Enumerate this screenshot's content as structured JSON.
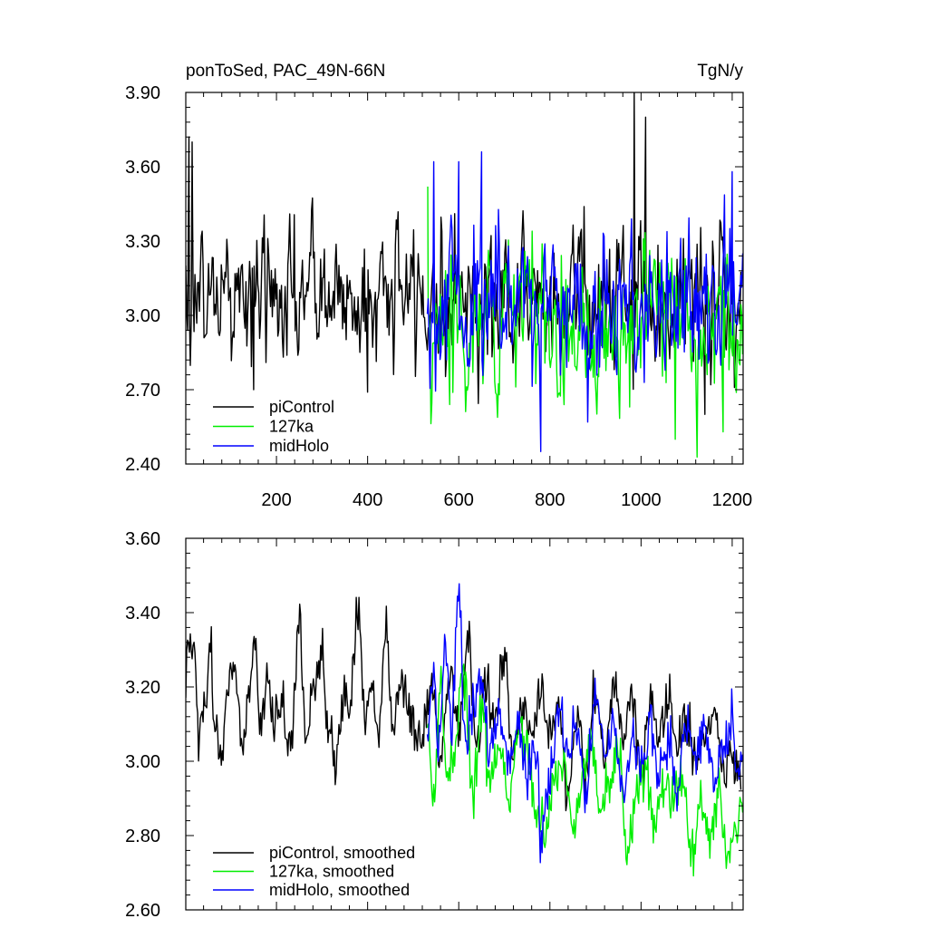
{
  "chart_data": [
    {
      "type": "line",
      "title_left": "ponToSed, PAC_49N-66N",
      "title_right": "TgN/y",
      "xlabel": "",
      "ylabel": "",
      "xlim": [
        1,
        1224
      ],
      "ylim": [
        2.4,
        3.9
      ],
      "xticks": [
        200,
        400,
        600,
        800,
        1000,
        1200
      ],
      "xtick_labels": [
        "200",
        "400",
        "600",
        "800",
        "1000",
        "1200"
      ],
      "yticks": [
        2.4,
        2.7,
        3.0,
        3.3,
        3.6,
        3.9
      ],
      "ytick_labels": [
        "2.40",
        "2.70",
        "3.00",
        "3.30",
        "3.60",
        "3.90"
      ],
      "grid": false,
      "legend_placement": "bottom-left",
      "series": [
        {
          "name": "piControl",
          "color": "#000000",
          "x_start": 1,
          "x_end": 1220,
          "mean": 3.08,
          "std": 0.15,
          "approximate": true,
          "notable_points": [
            [
              8,
              3.72
            ],
            [
              15,
              3.7
            ],
            [
              150,
              2.7
            ],
            [
              400,
              2.69
            ],
            [
              985,
              3.9
            ],
            [
              1010,
              3.8
            ],
            [
              1140,
              2.6
            ]
          ]
        },
        {
          "name": "127ka",
          "color": "#00ee00",
          "x_start": 531,
          "x_end": 1224,
          "mean": 2.98,
          "std": 0.17,
          "approximate": true,
          "notable_points": [
            [
              532,
              3.52
            ],
            [
              580,
              2.64
            ],
            [
              1075,
              2.5
            ],
            [
              1180,
              2.53
            ]
          ]
        },
        {
          "name": "midHolo",
          "color": "#0000ff",
          "x_start": 531,
          "x_end": 1224,
          "mean": 3.04,
          "std": 0.15,
          "approximate": true,
          "notable_points": [
            [
              545,
              3.62
            ],
            [
              600,
              3.62
            ],
            [
              650,
              3.66
            ],
            [
              780,
              2.45
            ],
            [
              1200,
              3.58
            ]
          ]
        }
      ]
    },
    {
      "type": "line",
      "title_left": "",
      "title_right": "",
      "xlabel": "",
      "ylabel": "",
      "xlim": [
        1,
        1224
      ],
      "ylim": [
        2.6,
        3.6
      ],
      "xticks": [
        200,
        400,
        600,
        800,
        1000,
        1200
      ],
      "xtick_labels": [],
      "yticks": [
        2.6,
        2.8,
        3.0,
        3.2,
        3.4,
        3.6
      ],
      "ytick_labels": [
        "2.60",
        "2.80",
        "3.00",
        "3.20",
        "3.40",
        "3.60"
      ],
      "grid": false,
      "legend_placement": "bottom-left",
      "series": [
        {
          "name": "piControl, smoothed",
          "color": "#000000",
          "x_start": 1,
          "x_end": 1220,
          "approximate": true,
          "anchors": [
            [
              1,
              3.15
            ],
            [
              5,
              3.33
            ],
            [
              20,
              3.28
            ],
            [
              30,
              3.05
            ],
            [
              45,
              3.18
            ],
            [
              55,
              3.3
            ],
            [
              65,
              3.1
            ],
            [
              80,
              3.02
            ],
            [
              95,
              3.2
            ],
            [
              110,
              3.26
            ],
            [
              125,
              3.05
            ],
            [
              140,
              3.2
            ],
            [
              150,
              3.34
            ],
            [
              165,
              3.08
            ],
            [
              180,
              3.22
            ],
            [
              200,
              3.1
            ],
            [
              215,
              3.18
            ],
            [
              230,
              3.0
            ],
            [
              250,
              3.39
            ],
            [
              265,
              3.05
            ],
            [
              280,
              3.22
            ],
            [
              300,
              3.26
            ],
            [
              315,
              3.1
            ],
            [
              330,
              3.0
            ],
            [
              345,
              3.18
            ],
            [
              360,
              3.15
            ],
            [
              380,
              3.42
            ],
            [
              395,
              3.08
            ],
            [
              410,
              3.2
            ],
            [
              425,
              3.08
            ],
            [
              440,
              3.38
            ],
            [
              455,
              3.1
            ],
            [
              470,
              3.2
            ],
            [
              500,
              3.1
            ],
            [
              520,
              3.05
            ],
            [
              540,
              3.22
            ],
            [
              560,
              3.02
            ],
            [
              580,
              3.24
            ],
            [
              600,
              3.1
            ],
            [
              620,
              3.3
            ],
            [
              640,
              3.05
            ],
            [
              660,
              3.22
            ],
            [
              680,
              3.1
            ],
            [
              700,
              3.28
            ],
            [
              720,
              3.0
            ],
            [
              740,
              3.18
            ],
            [
              760,
              3.08
            ],
            [
              780,
              3.2
            ],
            [
              800,
              3.08
            ],
            [
              820,
              3.12
            ],
            [
              840,
              2.92
            ],
            [
              860,
              3.1
            ],
            [
              880,
              2.95
            ],
            [
              900,
              3.18
            ],
            [
              920,
              3.02
            ],
            [
              940,
              3.22
            ],
            [
              960,
              3.05
            ],
            [
              980,
              3.2
            ],
            [
              1000,
              2.95
            ],
            [
              1020,
              3.18
            ],
            [
              1040,
              3.08
            ],
            [
              1060,
              3.2
            ],
            [
              1080,
              3.02
            ],
            [
              1100,
              3.1
            ],
            [
              1120,
              3.0
            ],
            [
              1140,
              3.08
            ],
            [
              1160,
              3.12
            ],
            [
              1180,
              2.95
            ],
            [
              1200,
              3.02
            ],
            [
              1220,
              2.92
            ]
          ]
        },
        {
          "name": "127ka, smoothed",
          "color": "#00ee00",
          "x_start": 531,
          "x_end": 1224,
          "approximate": true,
          "anchors": [
            [
              531,
              3.1
            ],
            [
              545,
              2.9
            ],
            [
              560,
              3.2
            ],
            [
              575,
              2.95
            ],
            [
              590,
              3.05
            ],
            [
              610,
              3.25
            ],
            [
              630,
              2.9
            ],
            [
              650,
              3.1
            ],
            [
              670,
              2.95
            ],
            [
              690,
              3.05
            ],
            [
              710,
              2.9
            ],
            [
              730,
              3.1
            ],
            [
              750,
              3.0
            ],
            [
              770,
              2.85
            ],
            [
              790,
              2.8
            ],
            [
              810,
              2.95
            ],
            [
              830,
              3.0
            ],
            [
              850,
              2.8
            ],
            [
              870,
              2.95
            ],
            [
              890,
              3.05
            ],
            [
              910,
              2.85
            ],
            [
              930,
              2.95
            ],
            [
              950,
              3.05
            ],
            [
              970,
              2.8
            ],
            [
              990,
              2.9
            ],
            [
              1010,
              3.0
            ],
            [
              1030,
              2.85
            ],
            [
              1050,
              2.95
            ],
            [
              1070,
              2.88
            ],
            [
              1090,
              2.95
            ],
            [
              1110,
              2.75
            ],
            [
              1130,
              2.88
            ],
            [
              1150,
              2.8
            ],
            [
              1170,
              2.92
            ],
            [
              1190,
              2.72
            ],
            [
              1205,
              2.8
            ],
            [
              1224,
              2.88
            ]
          ]
        },
        {
          "name": "midHolo, smoothed",
          "color": "#0000ff",
          "x_start": 531,
          "x_end": 1224,
          "approximate": true,
          "anchors": [
            [
              531,
              3.08
            ],
            [
              545,
              3.22
            ],
            [
              555,
              3.05
            ],
            [
              570,
              3.3
            ],
            [
              585,
              3.1
            ],
            [
              600,
              3.45
            ],
            [
              615,
              3.05
            ],
            [
              630,
              3.15
            ],
            [
              650,
              3.2
            ],
            [
              670,
              3.05
            ],
            [
              690,
              3.12
            ],
            [
              710,
              3.0
            ],
            [
              730,
              3.1
            ],
            [
              750,
              2.98
            ],
            [
              770,
              3.05
            ],
            [
              780,
              2.76
            ],
            [
              800,
              2.95
            ],
            [
              820,
              3.15
            ],
            [
              840,
              3.05
            ],
            [
              860,
              3.1
            ],
            [
              880,
              2.92
            ],
            [
              900,
              3.2
            ],
            [
              920,
              3.0
            ],
            [
              940,
              3.1
            ],
            [
              960,
              2.9
            ],
            [
              980,
              3.05
            ],
            [
              1000,
              3.0
            ],
            [
              1020,
              3.1
            ],
            [
              1040,
              2.95
            ],
            [
              1060,
              3.05
            ],
            [
              1080,
              2.92
            ],
            [
              1100,
              3.1
            ],
            [
              1120,
              3.0
            ],
            [
              1140,
              3.1
            ],
            [
              1160,
              2.95
            ],
            [
              1180,
              3.05
            ],
            [
              1200,
              3.12
            ],
            [
              1210,
              2.95
            ],
            [
              1224,
              3.06
            ]
          ]
        }
      ]
    }
  ]
}
